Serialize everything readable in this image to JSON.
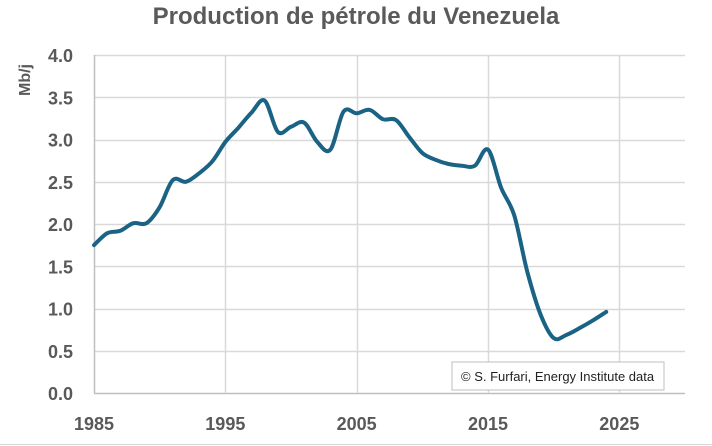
{
  "chart_data": {
    "type": "line",
    "title": "Production de pétrole du Venezuela",
    "xlabel": "",
    "ylabel": "Mb/j",
    "xlim": [
      1985,
      2030
    ],
    "ylim": [
      0,
      4
    ],
    "x_ticks": [
      "1985",
      "1995",
      "2005",
      "2015",
      "2025"
    ],
    "x_tick_values": [
      1985,
      1995,
      2005,
      2015,
      2025
    ],
    "y_ticks": [
      "0.0",
      "0.5",
      "1.0",
      "1.5",
      "2.0",
      "2.5",
      "3.0",
      "3.5",
      "4.0"
    ],
    "y_tick_values": [
      0,
      0.5,
      1,
      1.5,
      2,
      2.5,
      3,
      3.5,
      4
    ],
    "grid": true,
    "legend": "none",
    "annotation": "© S. Furfari, Energy Institute data",
    "colors": {
      "line": "#1a6384",
      "grid": "#d9d9d9",
      "text": "#595959"
    },
    "series": [
      {
        "name": "Venezuela",
        "x": [
          1985,
          1986,
          1987,
          1988,
          1989,
          1990,
          1991,
          1992,
          1993,
          1994,
          1995,
          1996,
          1997,
          1998,
          1999,
          2000,
          2001,
          2002,
          2003,
          2004,
          2005,
          2006,
          2007,
          2008,
          2009,
          2010,
          2011,
          2012,
          2013,
          2014,
          2015,
          2016,
          2017,
          2018,
          2019,
          2020,
          2021,
          2022,
          2023,
          2024
        ],
        "values": [
          1.75,
          1.89,
          1.92,
          2.01,
          2.01,
          2.2,
          2.52,
          2.5,
          2.6,
          2.74,
          2.97,
          3.14,
          3.32,
          3.46,
          3.09,
          3.15,
          3.2,
          2.97,
          2.88,
          3.33,
          3.31,
          3.35,
          3.24,
          3.23,
          3.03,
          2.84,
          2.76,
          2.71,
          2.69,
          2.69,
          2.88,
          2.43,
          2.1,
          1.43,
          0.93,
          0.65,
          0.69,
          0.77,
          0.86,
          0.96
        ]
      }
    ]
  }
}
